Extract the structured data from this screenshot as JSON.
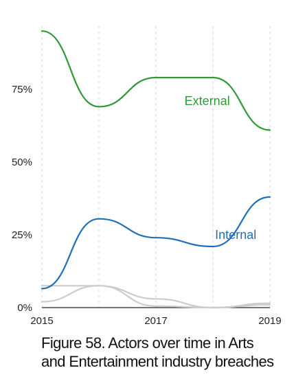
{
  "chart_data": {
    "type": "line",
    "x": [
      2015,
      2016,
      2017,
      2018,
      2019
    ],
    "xticks": [
      "2015",
      "2017",
      "2019"
    ],
    "yticks": [
      "0%",
      "25%",
      "50%",
      "75%"
    ],
    "ylim": [
      0,
      100
    ],
    "grid": "vertical dotted",
    "series": [
      {
        "name": "External",
        "values": [
          95,
          69,
          79,
          79,
          61
        ],
        "color": "#2e9a35",
        "labelled": true
      },
      {
        "name": "Internal",
        "values": [
          6.5,
          30.5,
          24,
          21,
          38
        ],
        "color": "#1f6fb5",
        "labelled": true
      },
      {
        "values": [
          7.5,
          7.5,
          0.5,
          0,
          1
        ],
        "color": "#cccccc",
        "labelled": false
      },
      {
        "values": [
          2,
          7.5,
          3,
          0,
          1.5
        ],
        "color": "#cccccc",
        "labelled": false
      }
    ]
  },
  "caption": {
    "line1": "Figure 58. Actors over time in Arts",
    "line2": "and Entertainment industry breaches"
  }
}
